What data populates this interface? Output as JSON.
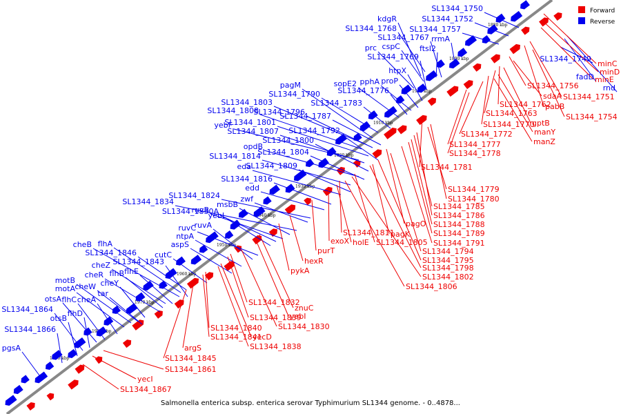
{
  "caption": "Salmonella enterica subsp. enterica serovar Typhimurium SL1344 genome. - 0..4878...",
  "colors": {
    "forward": "#ee0000",
    "reverse": "#0000ee",
    "backbone": "#888888"
  },
  "legend": {
    "forward": "Forward",
    "reverse": "Reverse"
  },
  "ticks": [
    "1880 kbp",
    "1890 kbp",
    "1900 kbp",
    "1910 kbp",
    "1920 kbp",
    "1930 kbp",
    "1940 kbp",
    "1950 kbp",
    "1960 kbp",
    "1970 kbp",
    "1980 kbp",
    "1990 kbp"
  ],
  "reverse_labels": [
    "SL1344_1750",
    "SL1344_1752",
    "SL1344_1757",
    "kdgR",
    "SL1344_1768",
    "SL1344_1767",
    "rrmA",
    "prc",
    "cspC",
    "ftsI2",
    "SL1344_1769",
    "htpX",
    "proP",
    "pphA",
    "sopE2",
    "SL1344_1776",
    "SL1344_1783",
    "pagM",
    "SL1344_1790",
    "SL1344_1803",
    "SL1344_1808",
    "SL1344_1796",
    "SL1344_1787",
    "SL1344_1801",
    "yebF",
    "SL1344_1807",
    "SL1344_1792",
    "SL1344_1800",
    "opdB",
    "SL1344_1804",
    "SL1344_1814",
    "SL1344_1809",
    "eda",
    "SL1344_1816",
    "edd",
    "SL1344_1824",
    "zwf",
    "SL1344_1834",
    "msbB",
    "ruvB",
    "SL1344_1830A",
    "yebL",
    "ruvC",
    "ruvA",
    "ntpA",
    "aspS",
    "cheB",
    "flhA",
    "SL1344_1846",
    "cutC",
    "cheZ",
    "SL1344_1843",
    "cheR",
    "flhB",
    "flhE",
    "motB",
    "cheY",
    "cheW",
    "motA",
    "tar",
    "cheA",
    "otsA",
    "flhC",
    "SL1344_1864",
    "flhD",
    "otsB",
    "SL1344_1866",
    "pgsA",
    "SL1344_1749",
    "fadD",
    "rnd"
  ],
  "forward_labels": [
    "minC",
    "minD",
    "minE",
    "SL1344_1751",
    "pabB",
    "SL1344_1754",
    "SL1344_1756",
    "sdaA",
    "SL1344_1762",
    "SL1344_1763",
    "gptB",
    "SL1344_1770",
    "manY",
    "SL1344_1772",
    "manZ",
    "SL1344_1777",
    "SL1344_1778",
    "SL1344_1781",
    "SL1344_1779",
    "SL1344_1780",
    "SL1344_1785",
    "SL1344_1786",
    "pagO",
    "SL1344_1788",
    "SL1344_1789",
    "SL1344_1811",
    "pagK",
    "exoX",
    "holE",
    "SL1344_1805",
    "SL1344_1791",
    "SL1344_1794",
    "purT",
    "SL1344_1795",
    "SL1344_1798",
    "hexR",
    "pykA",
    "SL1344_1802",
    "SL1344_1806",
    "SL1344_1832",
    "znuC",
    "yebI",
    "SL1344_1839",
    "SL1344_1830",
    "SL1344_1840",
    "SL1344_1841",
    "yecD",
    "SL1344_1838",
    "argS",
    "SL1344_1845",
    "SL1344_1861",
    "yecI",
    "SL1344_1867"
  ]
}
